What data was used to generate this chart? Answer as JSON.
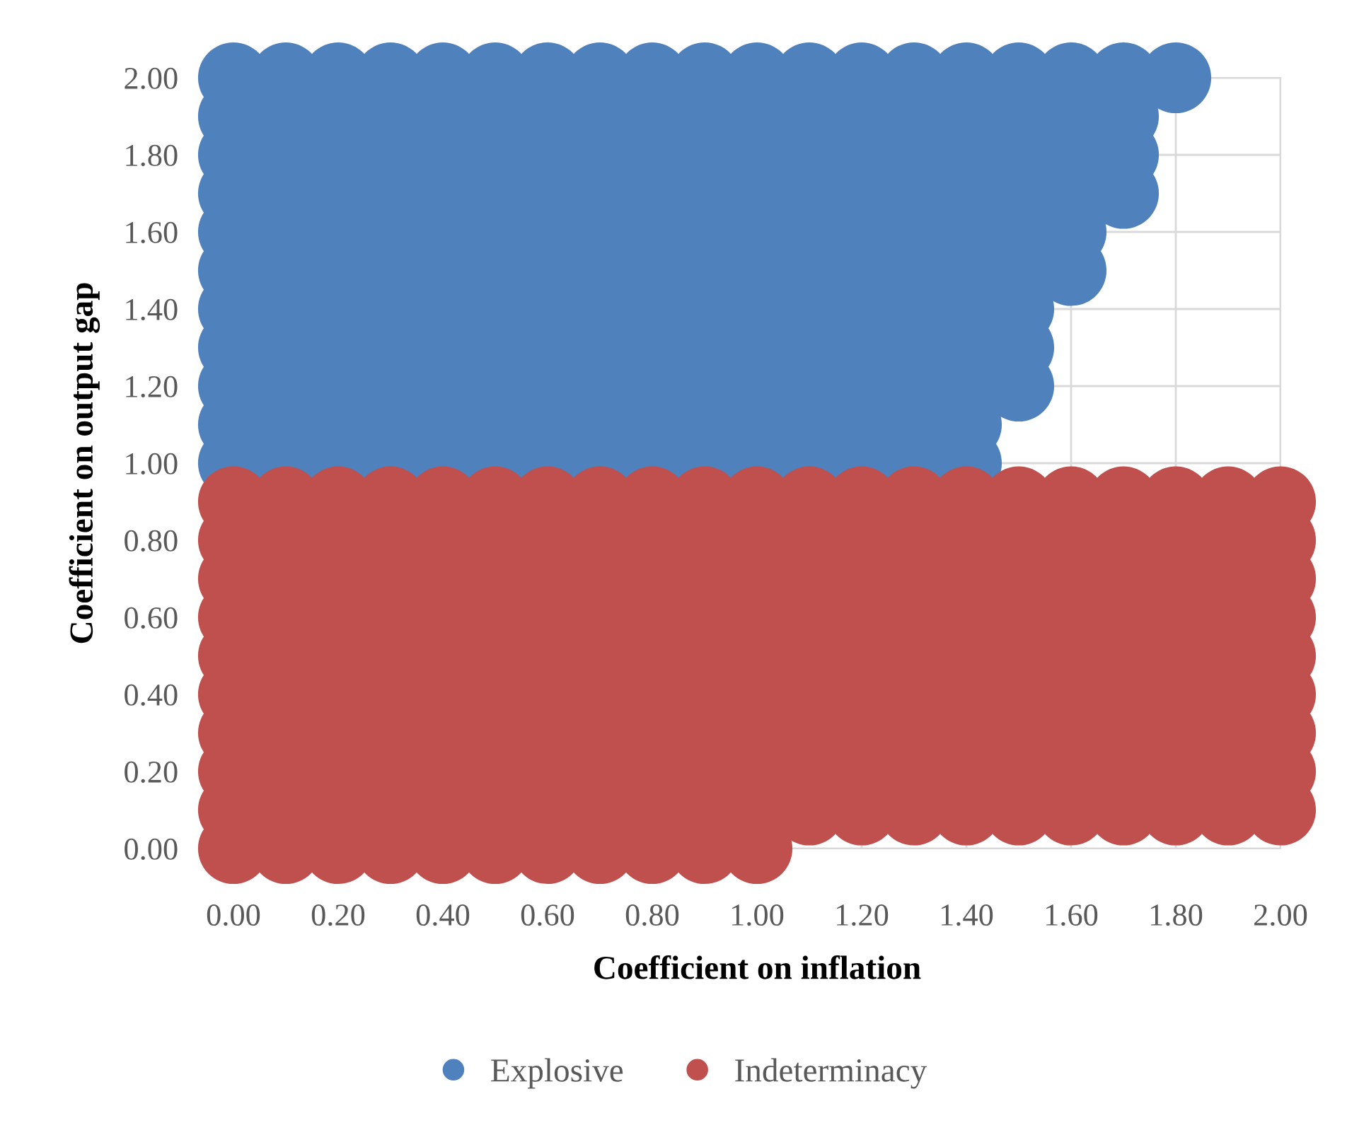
{
  "chart_data": {
    "type": "scatter",
    "xlabel": "Coefficient on inflation",
    "ylabel": "Coefficient on output gap",
    "xlim": [
      0,
      2
    ],
    "ylim": [
      0,
      2
    ],
    "xticks": [
      {
        "value": 0,
        "label": "0.00"
      },
      {
        "value": 0.2,
        "label": "0.20"
      },
      {
        "value": 0.4,
        "label": "0.40"
      },
      {
        "value": 0.6,
        "label": "0.60"
      },
      {
        "value": 0.8,
        "label": "0.80"
      },
      {
        "value": 1,
        "label": "1.00"
      },
      {
        "value": 1.2,
        "label": "1.20"
      },
      {
        "value": 1.4,
        "label": "1.40"
      },
      {
        "value": 1.6,
        "label": "1.60"
      },
      {
        "value": 1.8,
        "label": "1.80"
      },
      {
        "value": 2,
        "label": "2.00"
      }
    ],
    "yticks": [
      {
        "value": 0,
        "label": "0.00"
      },
      {
        "value": 0.2,
        "label": "0.20"
      },
      {
        "value": 0.4,
        "label": "0.40"
      },
      {
        "value": 0.6,
        "label": "0.60"
      },
      {
        "value": 0.8,
        "label": "0.80"
      },
      {
        "value": 1,
        "label": "1.00"
      },
      {
        "value": 1.2,
        "label": "1.20"
      },
      {
        "value": 1.4,
        "label": "1.40"
      },
      {
        "value": 1.6,
        "label": "1.60"
      },
      {
        "value": 1.8,
        "label": "1.80"
      },
      {
        "value": 2,
        "label": "2.00"
      }
    ],
    "grid": true,
    "legend": "bottom",
    "marker": "circle",
    "series": [
      {
        "name": "Explosive",
        "color": "#4f81bd",
        "x": [
          0,
          0.1,
          0.2,
          0.3,
          0.4,
          0.5,
          0.6,
          0.7,
          0.8,
          0.9,
          1,
          1.1,
          1.2,
          1.3,
          1.4,
          0,
          0.1,
          0.2,
          0.3,
          0.4,
          0.5,
          0.6,
          0.7,
          0.8,
          0.9,
          1,
          1.1,
          1.2,
          1.3,
          1.4,
          0,
          0.1,
          0.2,
          0.3,
          0.4,
          0.5,
          0.6,
          0.7,
          0.8,
          0.9,
          1,
          1.1,
          1.2,
          1.3,
          1.4,
          1.5,
          0,
          0.1,
          0.2,
          0.3,
          0.4,
          0.5,
          0.6,
          0.7,
          0.8,
          0.9,
          1,
          1.1,
          1.2,
          1.3,
          1.4,
          1.5,
          0,
          0.1,
          0.2,
          0.3,
          0.4,
          0.5,
          0.6,
          0.7,
          0.8,
          0.9,
          1,
          1.1,
          1.2,
          1.3,
          1.4,
          1.5,
          0,
          0.1,
          0.2,
          0.3,
          0.4,
          0.5,
          0.6,
          0.7,
          0.8,
          0.9,
          1,
          1.1,
          1.2,
          1.3,
          1.4,
          1.5,
          1.6,
          0,
          0.1,
          0.2,
          0.3,
          0.4,
          0.5,
          0.6,
          0.7,
          0.8,
          0.9,
          1,
          1.1,
          1.2,
          1.3,
          1.4,
          1.5,
          1.6,
          0,
          0.1,
          0.2,
          0.3,
          0.4,
          0.5,
          0.6,
          0.7,
          0.8,
          0.9,
          1,
          1.1,
          1.2,
          1.3,
          1.4,
          1.5,
          1.6,
          1.7,
          0,
          0.1,
          0.2,
          0.3,
          0.4,
          0.5,
          0.6,
          0.7,
          0.8,
          0.9,
          1,
          1.1,
          1.2,
          1.3,
          1.4,
          1.5,
          1.6,
          1.7,
          0,
          0.1,
          0.2,
          0.3,
          0.4,
          0.5,
          0.6,
          0.7,
          0.8,
          0.9,
          1,
          1.1,
          1.2,
          1.3,
          1.4,
          1.5,
          1.6,
          1.7,
          0,
          0.1,
          0.2,
          0.3,
          0.4,
          0.5,
          0.6,
          0.7,
          0.8,
          0.9,
          1,
          1.1,
          1.2,
          1.3,
          1.4,
          1.5,
          1.6,
          1.7,
          1.8
        ],
        "values": [
          1,
          1,
          1,
          1,
          1,
          1,
          1,
          1,
          1,
          1,
          1,
          1,
          1,
          1,
          1,
          1.1,
          1.1,
          1.1,
          1.1,
          1.1,
          1.1,
          1.1,
          1.1,
          1.1,
          1.1,
          1.1,
          1.1,
          1.1,
          1.1,
          1.1,
          1.2,
          1.2,
          1.2,
          1.2,
          1.2,
          1.2,
          1.2,
          1.2,
          1.2,
          1.2,
          1.2,
          1.2,
          1.2,
          1.2,
          1.2,
          1.2,
          1.3,
          1.3,
          1.3,
          1.3,
          1.3,
          1.3,
          1.3,
          1.3,
          1.3,
          1.3,
          1.3,
          1.3,
          1.3,
          1.3,
          1.3,
          1.3,
          1.4,
          1.4,
          1.4,
          1.4,
          1.4,
          1.4,
          1.4,
          1.4,
          1.4,
          1.4,
          1.4,
          1.4,
          1.4,
          1.4,
          1.4,
          1.4,
          1.5,
          1.5,
          1.5,
          1.5,
          1.5,
          1.5,
          1.5,
          1.5,
          1.5,
          1.5,
          1.5,
          1.5,
          1.5,
          1.5,
          1.5,
          1.5,
          1.5,
          1.6,
          1.6,
          1.6,
          1.6,
          1.6,
          1.6,
          1.6,
          1.6,
          1.6,
          1.6,
          1.6,
          1.6,
          1.6,
          1.6,
          1.6,
          1.6,
          1.6,
          1.7,
          1.7,
          1.7,
          1.7,
          1.7,
          1.7,
          1.7,
          1.7,
          1.7,
          1.7,
          1.7,
          1.7,
          1.7,
          1.7,
          1.7,
          1.7,
          1.7,
          1.7,
          1.8,
          1.8,
          1.8,
          1.8,
          1.8,
          1.8,
          1.8,
          1.8,
          1.8,
          1.8,
          1.8,
          1.8,
          1.8,
          1.8,
          1.8,
          1.8,
          1.8,
          1.8,
          1.9,
          1.9,
          1.9,
          1.9,
          1.9,
          1.9,
          1.9,
          1.9,
          1.9,
          1.9,
          1.9,
          1.9,
          1.9,
          1.9,
          1.9,
          1.9,
          1.9,
          1.9,
          2,
          2,
          2,
          2,
          2,
          2,
          2,
          2,
          2,
          2,
          2,
          2,
          2,
          2,
          2,
          2,
          2,
          2,
          2
        ]
      },
      {
        "name": "Indeterminacy",
        "color": "#c0504d",
        "x": [
          0,
          0.1,
          0.2,
          0.3,
          0.4,
          0.5,
          0.6,
          0.7,
          0.8,
          0.9,
          1,
          0,
          0.1,
          0.2,
          0.3,
          0.4,
          0.5,
          0.6,
          0.7,
          0.8,
          0.9,
          1,
          1.1,
          1.2,
          1.3,
          1.4,
          1.5,
          1.6,
          1.7,
          1.8,
          1.9,
          2,
          0,
          0.1,
          0.2,
          0.3,
          0.4,
          0.5,
          0.6,
          0.7,
          0.8,
          0.9,
          1,
          1.1,
          1.2,
          1.3,
          1.4,
          1.5,
          1.6,
          1.7,
          1.8,
          1.9,
          2,
          0,
          0.1,
          0.2,
          0.3,
          0.4,
          0.5,
          0.6,
          0.7,
          0.8,
          0.9,
          1,
          1.1,
          1.2,
          1.3,
          1.4,
          1.5,
          1.6,
          1.7,
          1.8,
          1.9,
          2,
          0,
          0.1,
          0.2,
          0.3,
          0.4,
          0.5,
          0.6,
          0.7,
          0.8,
          0.9,
          1,
          1.1,
          1.2,
          1.3,
          1.4,
          1.5,
          1.6,
          1.7,
          1.8,
          1.9,
          2,
          0,
          0.1,
          0.2,
          0.3,
          0.4,
          0.5,
          0.6,
          0.7,
          0.8,
          0.9,
          1,
          1.1,
          1.2,
          1.3,
          1.4,
          1.5,
          1.6,
          1.7,
          1.8,
          1.9,
          2,
          0,
          0.1,
          0.2,
          0.3,
          0.4,
          0.5,
          0.6,
          0.7,
          0.8,
          0.9,
          1,
          1.1,
          1.2,
          1.3,
          1.4,
          1.5,
          1.6,
          1.7,
          1.8,
          1.9,
          2,
          0,
          0.1,
          0.2,
          0.3,
          0.4,
          0.5,
          0.6,
          0.7,
          0.8,
          0.9,
          1,
          1.1,
          1.2,
          1.3,
          1.4,
          1.5,
          1.6,
          1.7,
          1.8,
          1.9,
          2,
          0,
          0.1,
          0.2,
          0.3,
          0.4,
          0.5,
          0.6,
          0.7,
          0.8,
          0.9,
          1,
          1.1,
          1.2,
          1.3,
          1.4,
          1.5,
          1.6,
          1.7,
          1.8,
          1.9,
          2,
          0,
          0.1,
          0.2,
          0.3,
          0.4,
          0.5,
          0.6,
          0.7,
          0.8,
          0.9,
          1,
          1.1,
          1.2,
          1.3,
          1.4,
          1.5,
          1.6,
          1.7,
          1.8,
          1.9,
          2
        ],
        "values": [
          0,
          0,
          0,
          0,
          0,
          0,
          0,
          0,
          0,
          0,
          0,
          0.1,
          0.1,
          0.1,
          0.1,
          0.1,
          0.1,
          0.1,
          0.1,
          0.1,
          0.1,
          0.1,
          0.1,
          0.1,
          0.1,
          0.1,
          0.1,
          0.1,
          0.1,
          0.1,
          0.1,
          0.1,
          0.2,
          0.2,
          0.2,
          0.2,
          0.2,
          0.2,
          0.2,
          0.2,
          0.2,
          0.2,
          0.2,
          0.2,
          0.2,
          0.2,
          0.2,
          0.2,
          0.2,
          0.2,
          0.2,
          0.2,
          0.2,
          0.3,
          0.3,
          0.3,
          0.3,
          0.3,
          0.3,
          0.3,
          0.3,
          0.3,
          0.3,
          0.3,
          0.3,
          0.3,
          0.3,
          0.3,
          0.3,
          0.3,
          0.3,
          0.3,
          0.3,
          0.3,
          0.4,
          0.4,
          0.4,
          0.4,
          0.4,
          0.4,
          0.4,
          0.4,
          0.4,
          0.4,
          0.4,
          0.4,
          0.4,
          0.4,
          0.4,
          0.4,
          0.4,
          0.4,
          0.4,
          0.4,
          0.4,
          0.5,
          0.5,
          0.5,
          0.5,
          0.5,
          0.5,
          0.5,
          0.5,
          0.5,
          0.5,
          0.5,
          0.5,
          0.5,
          0.5,
          0.5,
          0.5,
          0.5,
          0.5,
          0.5,
          0.5,
          0.5,
          0.6,
          0.6,
          0.6,
          0.6,
          0.6,
          0.6,
          0.6,
          0.6,
          0.6,
          0.6,
          0.6,
          0.6,
          0.6,
          0.6,
          0.6,
          0.6,
          0.6,
          0.6,
          0.6,
          0.6,
          0.6,
          0.7,
          0.7,
          0.7,
          0.7,
          0.7,
          0.7,
          0.7,
          0.7,
          0.7,
          0.7,
          0.7,
          0.7,
          0.7,
          0.7,
          0.7,
          0.7,
          0.7,
          0.7,
          0.7,
          0.7,
          0.7,
          0.8,
          0.8,
          0.8,
          0.8,
          0.8,
          0.8,
          0.8,
          0.8,
          0.8,
          0.8,
          0.8,
          0.8,
          0.8,
          0.8,
          0.8,
          0.8,
          0.8,
          0.8,
          0.8,
          0.8,
          0.8,
          0.9,
          0.9,
          0.9,
          0.9,
          0.9,
          0.9,
          0.9,
          0.9,
          0.9,
          0.9,
          0.9,
          0.9,
          0.9,
          0.9,
          0.9,
          0.9,
          0.9,
          0.9,
          0.9,
          0.9,
          0.9
        ]
      }
    ]
  }
}
